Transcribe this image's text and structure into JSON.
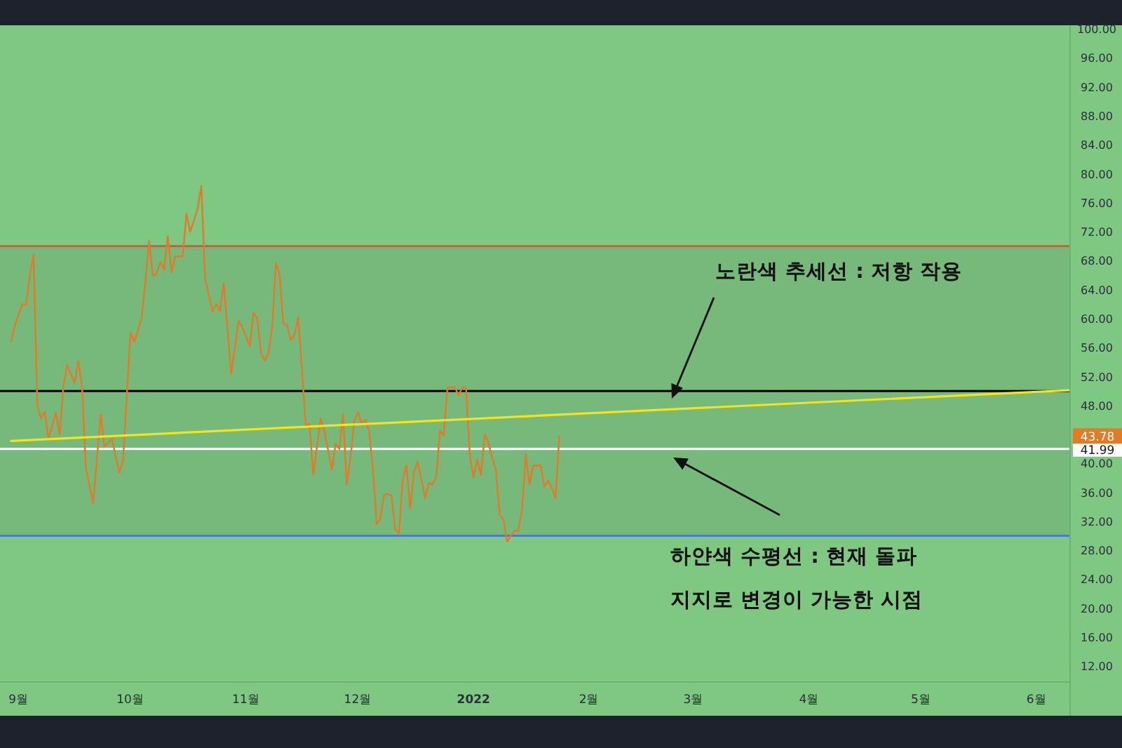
{
  "chart_data": {
    "type": "line",
    "x": [
      "2021-08-30",
      "2021-08-31",
      "2021-09-02",
      "2021-09-03",
      "2021-09-04",
      "2021-09-05",
      "2021-09-06",
      "2021-09-07",
      "2021-09-08",
      "2021-09-09",
      "2021-09-11",
      "2021-09-12",
      "2021-09-13",
      "2021-09-14",
      "2021-09-16",
      "2021-09-17",
      "2021-09-18",
      "2021-09-19",
      "2021-09-21",
      "2021-09-23",
      "2021-09-24",
      "2021-09-26",
      "2021-09-28",
      "2021-09-29",
      "2021-10-01",
      "2021-10-02",
      "2021-10-04",
      "2021-10-05",
      "2021-10-06",
      "2021-10-07",
      "2021-10-08",
      "2021-10-09",
      "2021-10-10",
      "2021-10-11",
      "2021-10-12",
      "2021-10-13",
      "2021-10-15",
      "2021-10-16",
      "2021-10-17",
      "2021-10-18",
      "2021-10-19",
      "2021-10-20",
      "2021-10-21",
      "2021-10-23",
      "2021-10-24",
      "2021-10-25",
      "2021-10-26",
      "2021-10-28",
      "2021-10-30",
      "2021-10-31",
      "2021-11-02",
      "2021-11-03",
      "2021-11-04",
      "2021-11-05",
      "2021-11-06",
      "2021-11-07",
      "2021-11-08",
      "2021-11-09",
      "2021-11-10",
      "2021-11-11",
      "2021-11-12",
      "2021-11-13",
      "2021-11-14",
      "2021-11-15",
      "2021-11-17",
      "2021-11-18",
      "2021-11-19",
      "2021-11-21",
      "2021-11-22",
      "2021-11-24",
      "2021-11-25",
      "2021-11-26",
      "2021-11-27",
      "2021-11-28",
      "2021-11-29",
      "2021-11-30",
      "2021-12-01",
      "2021-12-02",
      "2021-12-03",
      "2021-12-04",
      "2021-12-05",
      "2021-12-06",
      "2021-12-07",
      "2021-12-08",
      "2021-12-09",
      "2021-12-10",
      "2021-12-11",
      "2021-12-12",
      "2021-12-13",
      "2021-12-14",
      "2021-12-15",
      "2021-12-16",
      "2021-12-17",
      "2021-12-18",
      "2021-12-19",
      "2021-12-20",
      "2021-12-21",
      "2021-12-22",
      "2021-12-23",
      "2021-12-24",
      "2021-12-25",
      "2021-12-27",
      "2021-12-28",
      "2021-12-29",
      "2021-12-30",
      "2021-12-31",
      "2022-01-01",
      "2022-01-02",
      "2022-01-03",
      "2022-01-04",
      "2022-01-05",
      "2022-01-06",
      "2022-01-07",
      "2022-01-08",
      "2022-01-09",
      "2022-01-10",
      "2022-01-11",
      "2022-01-12",
      "2022-01-13",
      "2022-01-14",
      "2022-01-15",
      "2022-01-16",
      "2022-01-17",
      "2022-01-19",
      "2022-01-20",
      "2022-01-21",
      "2022-01-22",
      "2022-01-23",
      "2022-01-24"
    ],
    "series": [
      {
        "color": "#e07b28",
        "values": [
          56.8,
          59.1,
          62.0,
          61.9,
          65.9,
          68.8,
          48.1,
          46.2,
          47.1,
          43.4,
          47.0,
          44.0,
          50.7,
          53.6,
          51.1,
          54.1,
          50.7,
          39.4,
          34.5,
          46.8,
          42.3,
          43.4,
          38.7,
          40.4,
          58.1,
          56.8,
          60.0,
          65.2,
          70.7,
          65.9,
          66.2,
          67.8,
          66.8,
          71.4,
          66.4,
          68.6,
          68.6,
          74.5,
          72.0,
          73.5,
          75.2,
          78.3,
          65.5,
          61.0,
          62.0,
          61.1,
          64.9,
          52.3,
          59.7,
          58.8,
          56.2,
          60.8,
          60.0,
          55.2,
          54.2,
          55.2,
          58.8,
          67.7,
          66.0,
          59.3,
          59.1,
          57.0,
          57.8,
          60.2,
          45.2,
          45.5,
          38.4,
          46.2,
          44.5,
          39.1,
          42.7,
          42.0,
          46.8,
          37.1,
          40.7,
          45.8,
          47.1,
          45.5,
          46.0,
          44.5,
          39.4,
          31.6,
          32.4,
          35.6,
          35.8,
          35.5,
          30.9,
          30.3,
          37.8,
          39.7,
          33.7,
          38.7,
          40.2,
          37.8,
          35.2,
          37.3,
          37.1,
          38.1,
          44.5,
          43.9,
          50.5,
          50.5,
          49.4,
          50.5,
          50.4,
          41.0,
          38.1,
          40.6,
          38.4,
          44.0,
          42.9,
          40.7,
          39.1,
          32.9,
          32.3,
          29.2,
          30.0,
          30.7,
          30.7,
          33.6,
          41.2,
          37.1,
          39.7,
          39.7,
          36.8,
          37.6,
          36.6,
          35.2,
          43.78
        ]
      },
      {
        "type": "line",
        "color": "#f2e41f",
        "x": [
          "2021-08-30",
          "2022-06-10"
        ],
        "values": [
          43.1,
          50.1
        ]
      }
    ],
    "xlim": [
      "2021-08-27",
      "2022-06-10"
    ],
    "xticks": [
      {
        "value": "2021-09-01",
        "label": "9월"
      },
      {
        "value": "2021-10-01",
        "label": "10월"
      },
      {
        "value": "2021-11-01",
        "label": "11월"
      },
      {
        "value": "2021-12-01",
        "label": "12월"
      },
      {
        "value": "2022-01-01",
        "label": "2022"
      },
      {
        "value": "2022-02-01",
        "label": "2월"
      },
      {
        "value": "2022-03-01",
        "label": "3월"
      },
      {
        "value": "2022-04-01",
        "label": "4월"
      },
      {
        "value": "2022-05-01",
        "label": "5월"
      },
      {
        "value": "2022-06-01",
        "label": "6월"
      }
    ],
    "ylim": [
      9.8,
      100.5
    ],
    "yticks": [
      {
        "value": 12,
        "label": "12.00"
      },
      {
        "value": 16,
        "label": "16.00"
      },
      {
        "value": 20,
        "label": "20.00"
      },
      {
        "value": 24,
        "label": "24.00"
      },
      {
        "value": 28,
        "label": "28.00"
      },
      {
        "value": 32,
        "label": "32.00"
      },
      {
        "value": 36,
        "label": "36.00"
      },
      {
        "value": 40,
        "label": "40.00"
      },
      {
        "value": 48,
        "label": "48.00"
      },
      {
        "value": 52,
        "label": "52.00"
      },
      {
        "value": 56,
        "label": "56.00"
      },
      {
        "value": 60,
        "label": "60.00"
      },
      {
        "value": 64,
        "label": "64.00"
      },
      {
        "value": 68,
        "label": "68.00"
      },
      {
        "value": 72,
        "label": "72.00"
      },
      {
        "value": 76,
        "label": "76.00"
      },
      {
        "value": 80,
        "label": "80.00"
      },
      {
        "value": 84,
        "label": "84.00"
      },
      {
        "value": 88,
        "label": "88.00"
      },
      {
        "value": 92,
        "label": "92.00"
      },
      {
        "value": 96,
        "label": "96.00"
      },
      {
        "value": 100,
        "label": "100.00"
      }
    ],
    "bands": [
      {
        "axis": "y",
        "from": 30,
        "to": 70,
        "color": "#77b97a"
      }
    ],
    "ref_lines": [
      {
        "axis": "y",
        "value": 70,
        "color": "#e0533a"
      },
      {
        "axis": "y",
        "value": 50,
        "color": "#000000"
      },
      {
        "axis": "y",
        "value": 41.99,
        "color": "#ffffff",
        "label": "41.99"
      },
      {
        "axis": "y",
        "value": 30,
        "color": "#4a7bd1"
      }
    ],
    "annotations": [
      "노란색 추세선 : 저항 작용",
      "하얀색 수평선 : 현재 돌파",
      "지지로 변경이 가능한 시점",
      "43.78"
    ]
  }
}
